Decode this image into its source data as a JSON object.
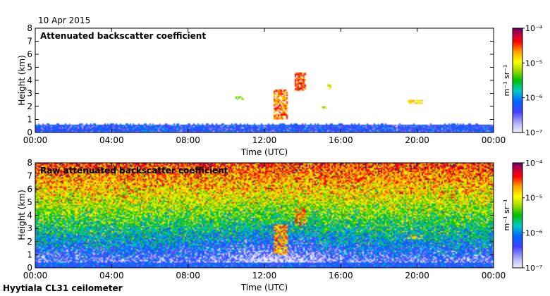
{
  "date": "10 Apr 2015",
  "footer": "Hyytiala CL31 ceilometer",
  "chart_data": [
    {
      "type": "heatmap",
      "title": "Attenuated backscatter coefficient",
      "xlabel": "Time (UTC)",
      "ylabel": "Height (km)",
      "xticks": [
        "00:00",
        "04:00",
        "08:00",
        "12:00",
        "16:00",
        "20:00",
        "00:00"
      ],
      "yticks": [
        "0",
        "1",
        "2",
        "3",
        "4",
        "5",
        "6",
        "7",
        "8"
      ],
      "xlim": [
        0,
        24
      ],
      "ylim": [
        0,
        8
      ],
      "colorbar": {
        "label": "m⁻¹ sr⁻¹",
        "scale": "log",
        "range": [
          1e-07,
          0.0001
        ],
        "ticks": [
          "10⁻⁷",
          "10⁻⁶",
          "10⁻⁵",
          "10⁻⁴"
        ]
      },
      "features": [
        {
          "t_start": 0,
          "t_end": 24,
          "h_bottom": 0,
          "h_top": 0.7,
          "level": -6.3
        },
        {
          "t_start": 10.5,
          "t_end": 10.9,
          "h_bottom": 2.5,
          "h_top": 2.8,
          "level": -5.2
        },
        {
          "t_start": 12.5,
          "t_end": 13.2,
          "h_bottom": 1.0,
          "h_top": 3.3,
          "level": -4.6
        },
        {
          "t_start": 13.6,
          "t_end": 14.2,
          "h_bottom": 3.2,
          "h_top": 4.6,
          "level": -4.5
        },
        {
          "t_start": 15.3,
          "t_end": 15.5,
          "h_bottom": 3.3,
          "h_top": 3.7,
          "level": -5.0
        },
        {
          "t_start": 15.0,
          "t_end": 15.3,
          "h_bottom": 1.8,
          "h_top": 2.0,
          "level": -5.3
        },
        {
          "t_start": 19.5,
          "t_end": 20.3,
          "h_bottom": 2.2,
          "h_top": 2.5,
          "level": -4.9
        }
      ]
    },
    {
      "type": "heatmap",
      "title": "Raw attenuated backscatter coefficient",
      "xlabel": "Time (UTC)",
      "ylabel": "Height (km)",
      "xticks": [
        "00:00",
        "04:00",
        "08:00",
        "12:00",
        "16:00",
        "20:00",
        "00:00"
      ],
      "yticks": [
        "0",
        "1",
        "2",
        "3",
        "4",
        "5",
        "6",
        "7",
        "8"
      ],
      "xlim": [
        0,
        24
      ],
      "ylim": [
        0,
        8
      ],
      "colorbar": {
        "label": "m⁻¹ sr⁻¹",
        "scale": "log",
        "range": [
          1e-07,
          0.0001
        ],
        "ticks": [
          "10⁻⁷",
          "10⁻⁶",
          "10⁻⁵",
          "10⁻⁴"
        ]
      },
      "features": [
        {
          "t_start": 12.5,
          "t_end": 13.2,
          "h_bottom": 1.0,
          "h_top": 3.3,
          "level": -4.7
        },
        {
          "t_start": 13.6,
          "t_end": 14.2,
          "h_bottom": 3.2,
          "h_top": 4.6,
          "level": -4.6
        },
        {
          "t_start": 19.5,
          "t_end": 20.3,
          "h_bottom": 2.2,
          "h_top": 2.5,
          "level": -4.8
        }
      ]
    }
  ]
}
